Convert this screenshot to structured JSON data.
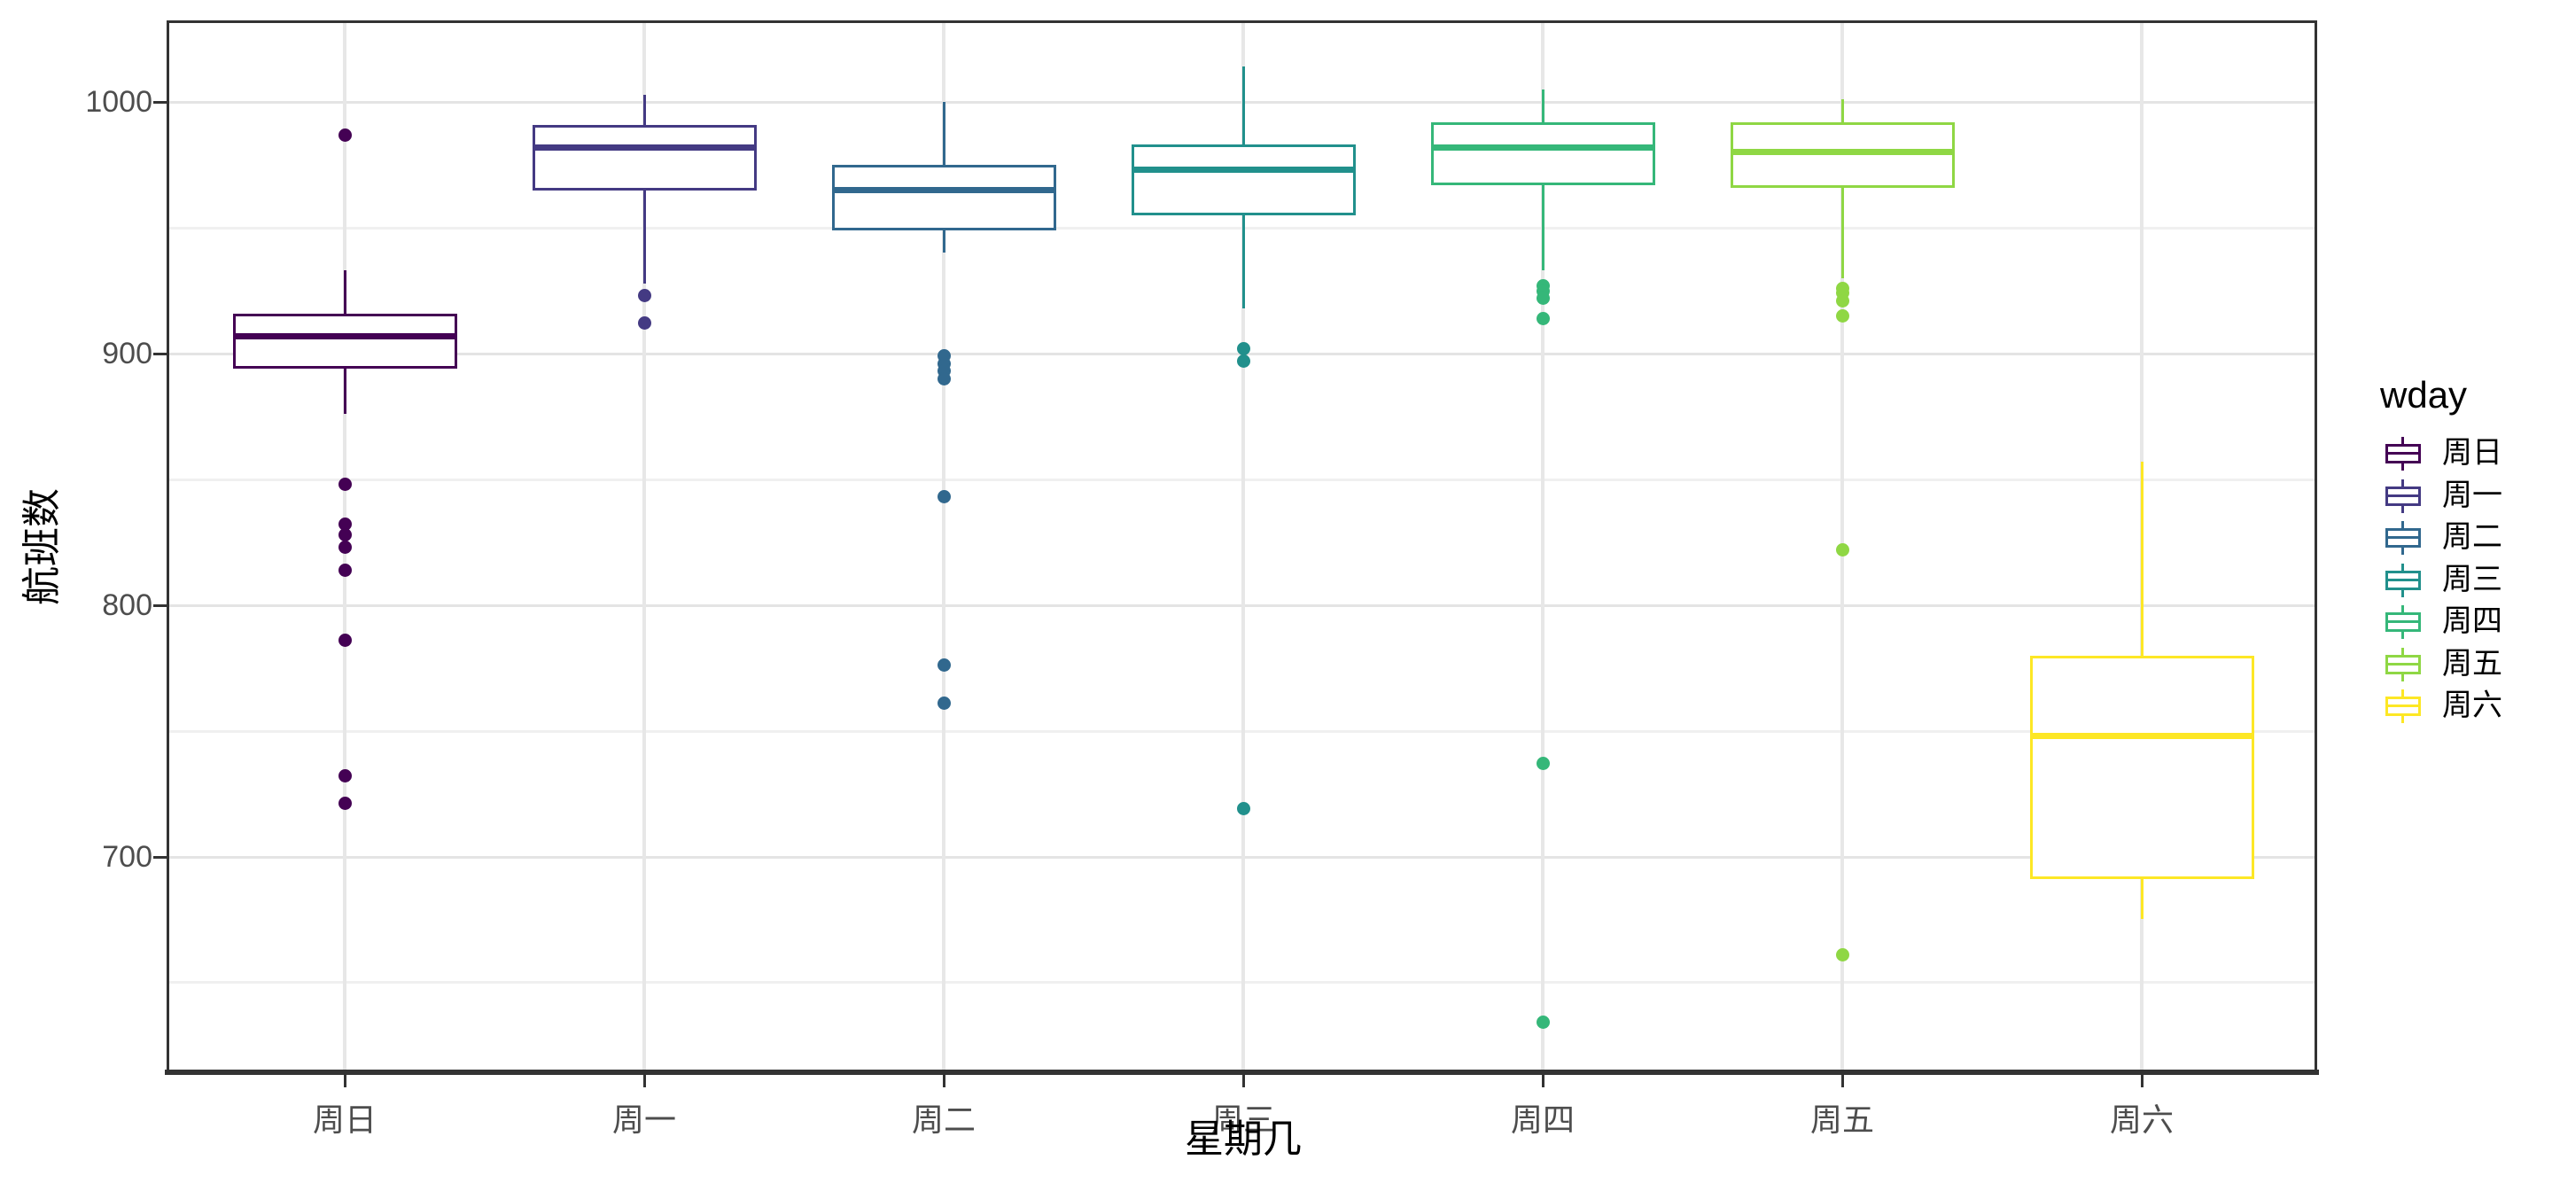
{
  "figure": {
    "background": "#ffffff"
  },
  "axes": {
    "y": {
      "title": "航班数",
      "tick_values": [
        1000,
        900,
        800,
        700
      ],
      "tick_labels": [
        "1000",
        "900",
        "800",
        "700"
      ],
      "major_gridlines": [
        1000,
        900,
        800,
        700
      ],
      "minor_gridlines": [
        950,
        850,
        750,
        650
      ]
    },
    "x": {
      "title": "星期几",
      "categories": [
        "周日",
        "周一",
        "周二",
        "周三",
        "周四",
        "周五",
        "周六"
      ]
    }
  },
  "legend": {
    "title": "wday",
    "position": "right"
  },
  "colors": {
    "panel_border": "#333333",
    "tick_color": "#333333",
    "axis_text": "#4d4d4d",
    "grid_major": "#e4e4e4",
    "grid_minor": "#f0f0f0",
    "palette_viridis7": [
      "#440154",
      "#443A83",
      "#31688E",
      "#21908C",
      "#35B779",
      "#8FD744",
      "#FDE725"
    ]
  },
  "chart_data": {
    "type": "boxplot",
    "title": "",
    "xlabel": "星期几",
    "ylabel": "航班数",
    "legend_title": "wday",
    "legend_position": "right",
    "grid": true,
    "ylim": [
      613.5,
      1032.5
    ],
    "y_major_ticks": [
      700,
      800,
      900,
      1000
    ],
    "categories": [
      "周日",
      "周一",
      "周二",
      "周三",
      "周四",
      "周五",
      "周六"
    ],
    "series": [
      {
        "category": "周日",
        "color": "#440154",
        "whisker_low": 876,
        "q1": 894,
        "median": 907,
        "q3": 916,
        "whisker_high": 933,
        "outliers": [
          987,
          848,
          832,
          828,
          823,
          814,
          786,
          732,
          721
        ]
      },
      {
        "category": "周一",
        "color": "#443A83",
        "whisker_low": 928,
        "q1": 965,
        "median": 982,
        "q3": 991,
        "whisker_high": 1003,
        "outliers": [
          923,
          912
        ]
      },
      {
        "category": "周二",
        "color": "#31688E",
        "whisker_low": 940,
        "q1": 949,
        "median": 965,
        "q3": 975,
        "whisker_high": 1000,
        "outliers": [
          899,
          896,
          893,
          890,
          843,
          776,
          761
        ]
      },
      {
        "category": "周三",
        "color": "#21908C",
        "whisker_low": 918,
        "q1": 955,
        "median": 973,
        "q3": 983,
        "whisker_high": 1014,
        "outliers": [
          902,
          897,
          719
        ]
      },
      {
        "category": "周四",
        "color": "#35B779",
        "whisker_low": 933,
        "q1": 967,
        "median": 982,
        "q3": 992,
        "whisker_high": 1005,
        "outliers": [
          927,
          925,
          922,
          914,
          737,
          634
        ]
      },
      {
        "category": "周五",
        "color": "#8FD744",
        "whisker_low": 930,
        "q1": 966,
        "median": 980,
        "q3": 992,
        "whisker_high": 1001,
        "outliers": [
          926,
          924,
          921,
          915,
          822,
          661
        ]
      },
      {
        "category": "周六",
        "color": "#FDE725",
        "whisker_low": 675,
        "q1": 691,
        "median": 748,
        "q3": 780,
        "whisker_high": 857,
        "outliers": []
      }
    ]
  }
}
